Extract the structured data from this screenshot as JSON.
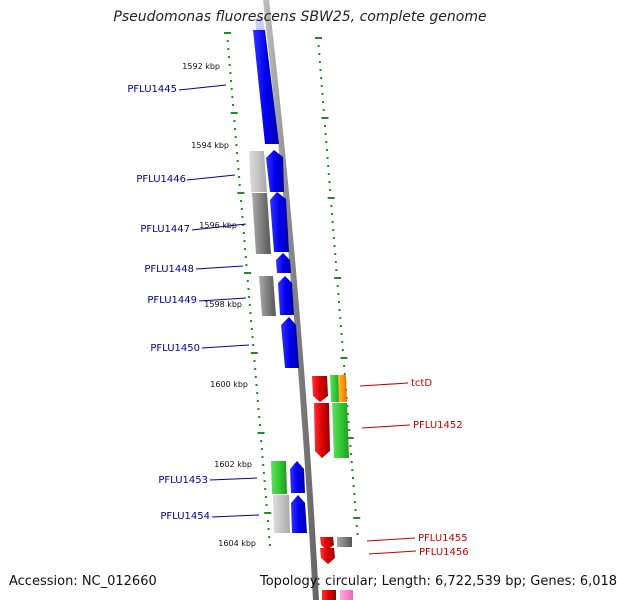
{
  "title": "Pseudomonas fluorescens SBW25, complete genome",
  "footer": {
    "accession": "Accession: NC_012660",
    "summary": "Topology: circular; Length: 6,722,539 bp; Genes: 6,018"
  },
  "ticks": [
    {
      "label": "1592 kbp"
    },
    {
      "label": "1594 kbp"
    },
    {
      "label": "1596 kbp"
    },
    {
      "label": "1598 kbp"
    },
    {
      "label": "1600 kbp"
    },
    {
      "label": "1602 kbp"
    },
    {
      "label": "1604 kbp"
    }
  ],
  "genes_left": [
    {
      "label": "PFLU1445"
    },
    {
      "label": "PFLU1446"
    },
    {
      "label": "PFLU1447"
    },
    {
      "label": "PFLU1448"
    },
    {
      "label": "PFLU1449"
    },
    {
      "label": "PFLU1450"
    },
    {
      "label": "PFLU1453"
    },
    {
      "label": "PFLU1454"
    }
  ],
  "genes_right": [
    {
      "label": "tctD"
    },
    {
      "label": "PFLU1452"
    },
    {
      "label": "PFLU1455"
    },
    {
      "label": "PFLU1456"
    }
  ],
  "colors": {
    "forward_cds": "#0000ee",
    "reverse_cds": "#dd0000",
    "rna": "#33cc33",
    "pseudo": "#888888",
    "other": "#ff9900",
    "tick": "#228b22",
    "backbone": "#888888",
    "left_label": "#0000aa",
    "right_label": "#cc0000"
  }
}
